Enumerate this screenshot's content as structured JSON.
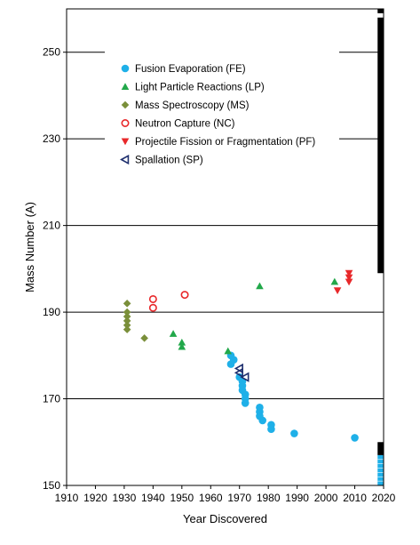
{
  "chart_data": {
    "type": "scatter",
    "title": "",
    "xlabel": "Year Discovered",
    "ylabel": "Mass Number (A)",
    "xlim": [
      1910,
      2020
    ],
    "ylim": [
      150,
      260
    ],
    "xticks": [
      "1910",
      "1920",
      "1930",
      "1940",
      "1950",
      "1960",
      "1970",
      "1980",
      "1990",
      "2000",
      "2010",
      "2020"
    ],
    "yticks": [
      "150",
      "170",
      "190",
      "210",
      "230",
      "250"
    ],
    "grid": "horizontal lines at 170, 190, 210, 230, 250",
    "legend_position": "top-left",
    "series": [
      {
        "name": "Fusion Evaporation (FE)",
        "marker": "circle-filled",
        "color": "#1fb0e8",
        "points": [
          [
            1967,
            180
          ],
          [
            1967,
            178
          ],
          [
            1968,
            179
          ],
          [
            1970,
            175
          ],
          [
            1971,
            174
          ],
          [
            1971,
            173
          ],
          [
            1971,
            172
          ],
          [
            1972,
            171
          ],
          [
            1972,
            170
          ],
          [
            1972,
            169
          ],
          [
            1977,
            168
          ],
          [
            1977,
            167
          ],
          [
            1977,
            166
          ],
          [
            1978,
            165
          ],
          [
            1981,
            164
          ],
          [
            1981,
            163
          ],
          [
            1989,
            162
          ],
          [
            2010,
            161
          ]
        ]
      },
      {
        "name": "Light Particle Reactions (LP)",
        "marker": "triangle-up-filled",
        "color": "#22a84a",
        "points": [
          [
            1947,
            185
          ],
          [
            1950,
            183
          ],
          [
            1950,
            182
          ],
          [
            1966,
            181
          ],
          [
            1977,
            196
          ],
          [
            2003,
            197
          ]
        ]
      },
      {
        "name": "Mass Spectroscopy (MS)",
        "marker": "diamond-filled",
        "color": "#7a8f3a",
        "points": [
          [
            1931,
            192
          ],
          [
            1931,
            190
          ],
          [
            1931,
            189
          ],
          [
            1931,
            188
          ],
          [
            1931,
            187
          ],
          [
            1931,
            186
          ],
          [
            1937,
            184
          ]
        ]
      },
      {
        "name": "Neutron Capture (NC)",
        "marker": "circle-open",
        "color": "#e8282a",
        "points": [
          [
            1940,
            193
          ],
          [
            1940,
            191
          ],
          [
            1951,
            194
          ]
        ]
      },
      {
        "name": "Projectile Fission or Fragmentation (PF)",
        "marker": "triangle-down-filled",
        "color": "#e8282a",
        "points": [
          [
            2004,
            195
          ],
          [
            2008,
            199
          ],
          [
            2008,
            198
          ],
          [
            2008,
            197
          ]
        ]
      },
      {
        "name": "Spallation (SP)",
        "marker": "triangle-left-open",
        "color": "#1e2f6e",
        "points": [
          [
            1970,
            177
          ],
          [
            1970,
            176
          ],
          [
            1972,
            175
          ]
        ]
      }
    ],
    "right_bar": {
      "x": 2019,
      "black_ranges": [
        [
          199,
          258
        ],
        [
          259,
          260
        ],
        [
          157,
          160
        ]
      ],
      "blue_range": [
        150,
        157
      ],
      "blue_color": "#1fb0e8"
    }
  }
}
